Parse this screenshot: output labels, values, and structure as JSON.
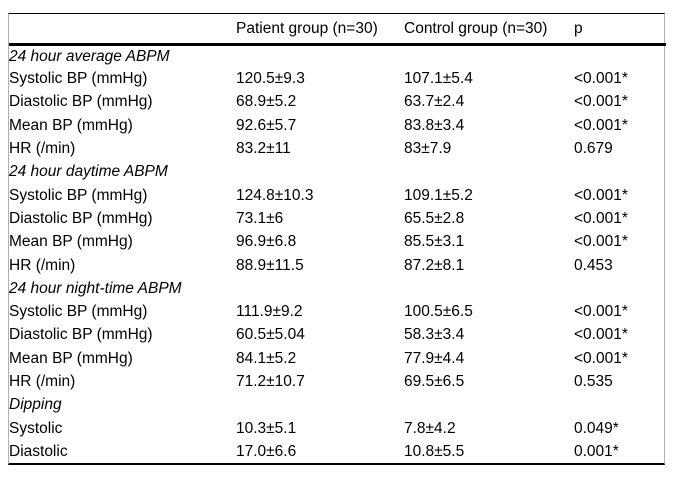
{
  "table": {
    "header": {
      "label_col": "",
      "patient_col": "Patient group (n=30)",
      "control_col": "Control group (n=30)",
      "p_col": "p"
    },
    "sections": [
      {
        "title": "24 hour average ABPM",
        "rows": [
          {
            "label": "Systolic BP (mmHg)",
            "patient": "120.5±9.3",
            "control": "107.1±5.4",
            "p": "<0.001*"
          },
          {
            "label": "Diastolic BP (mmHg)",
            "patient": "68.9±5.2",
            "control": "63.7±2.4",
            "p": "<0.001*"
          },
          {
            "label": "Mean BP (mmHg)",
            "patient": "92.6±5.7",
            "control": "83.8±3.4",
            "p": "<0.001*"
          },
          {
            "label": "HR (/min)",
            "patient": "83.2±11",
            "control": "83±7.9",
            "p": "0.679"
          }
        ]
      },
      {
        "title": "24 hour daytime ABPM",
        "rows": [
          {
            "label": "Systolic BP (mmHg)",
            "patient": "124.8±10.3",
            "control": "109.1±5.2",
            "p": "<0.001*"
          },
          {
            "label": "Diastolic BP (mmHg)",
            "patient": "73.1±6",
            "control": "65.5±2.8",
            "p": "<0.001*"
          },
          {
            "label": "Mean BP (mmHg)",
            "patient": "96.9±6.8",
            "control": "85.5±3.1",
            "p": "<0.001*"
          },
          {
            "label": "HR (/min)",
            "patient": "88.9±11.5",
            "control": "87.2±8.1",
            "p": "0.453"
          }
        ]
      },
      {
        "title": "24 hour night-time ABPM",
        "rows": [
          {
            "label": "Systolic BP (mmHg)",
            "patient": "111.9±9.2",
            "control": "100.5±6.5",
            "p": "<0.001*"
          },
          {
            "label": "Diastolic BP (mmHg)",
            "patient": "60.5±5.04",
            "control": "58.3±3.4",
            "p": "<0.001*"
          },
          {
            "label": "Mean BP (mmHg)",
            "patient": "84.1±5.2",
            "control": "77.9±4.4",
            "p": "<0.001*"
          },
          {
            "label": "HR (/min)",
            "patient": "71.2±10.7",
            "control": "69.5±6.5",
            "p": "0.535"
          }
        ]
      },
      {
        "title": "Dipping",
        "rows": [
          {
            "label": "Systolic",
            "patient": "10.3±5.1",
            "control": "7.8±4.2",
            "p": "0.049*"
          },
          {
            "label": "Diastolic",
            "patient": "17.0±6.6",
            "control": "10.8±5.5",
            "p": "0.001*"
          }
        ]
      }
    ]
  },
  "colors": {
    "text": "#000000",
    "rule": "#000000",
    "frame_border": "#b0b0b0",
    "background": "#ffffff"
  }
}
